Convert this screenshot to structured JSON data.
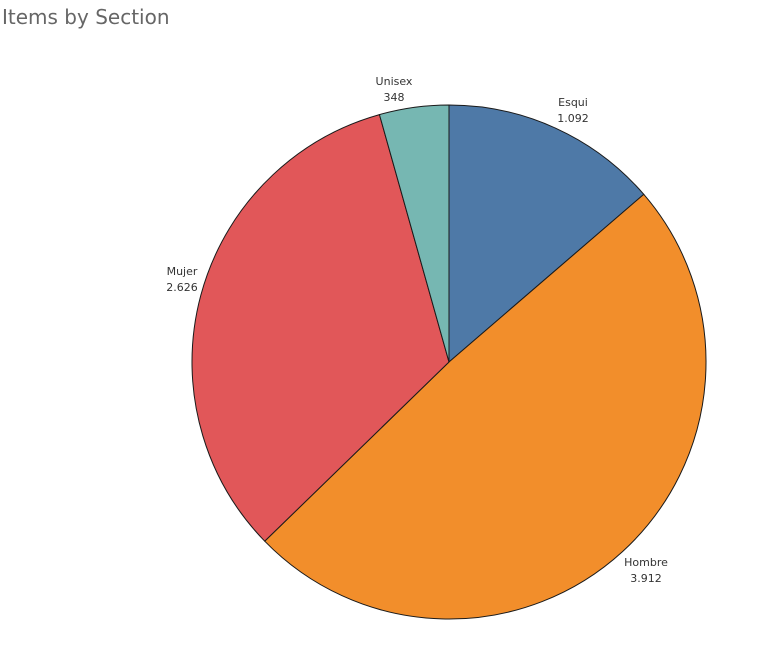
{
  "chart_data": {
    "type": "pie",
    "title": "Items by Section",
    "slices": [
      {
        "label": "Esqui",
        "value": 1092,
        "value_label": "1.092",
        "color": "#4E79A7"
      },
      {
        "label": "Hombre",
        "value": 3912,
        "value_label": "3.912",
        "color": "#F28E2B"
      },
      {
        "label": "Mujer",
        "value": 2626,
        "value_label": "2.626",
        "color": "#E15759"
      },
      {
        "label": "Unisex",
        "value": 348,
        "value_label": "348",
        "color": "#76B7B2"
      }
    ],
    "start": "12 o'clock",
    "direction": "clockwise",
    "legend": "none"
  }
}
